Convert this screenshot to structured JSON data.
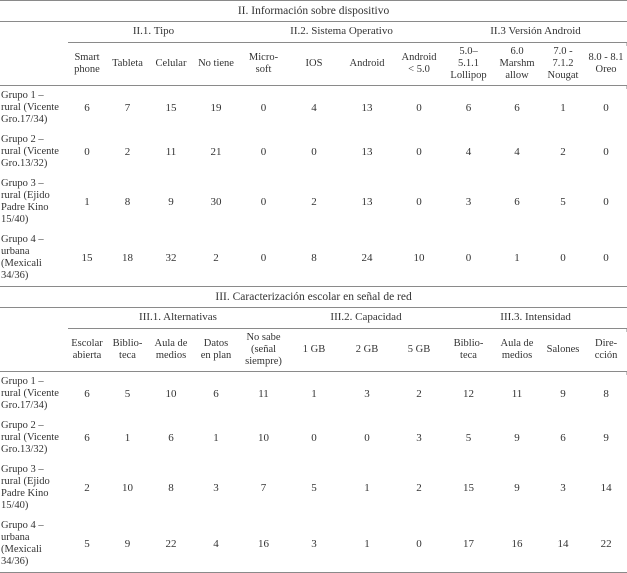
{
  "tables": [
    {
      "title": "II. Información sobre dispositivo",
      "groups": [
        {
          "label": "II.1. Tipo",
          "span": 4
        },
        {
          "label": "II.2. Sistema Operativo",
          "span": 4
        },
        {
          "label": "II.3 Versión Android",
          "span": 4
        }
      ],
      "columns": [
        "Smart\nphone",
        "Tableta",
        "Celular",
        "No tiene",
        "Micro-\nsoft",
        "IOS",
        "Android",
        "Android\n< 5.0",
        "5.0–\n5.1.1\nLollipop",
        "6.0\nMarshm\nallow",
        "7.0 -\n7.1.2\nNougat",
        "8.0 - 8.1\nOreo"
      ],
      "rows": [
        {
          "label": "Grupo 1 –\nrural (Vicente\nGro.17/34)",
          "values": [
            6,
            7,
            15,
            19,
            0,
            4,
            13,
            0,
            6,
            6,
            1,
            0
          ]
        },
        {
          "label": "Grupo 2 –\nrural (Vicente\nGro.13/32)",
          "values": [
            0,
            2,
            11,
            21,
            0,
            0,
            13,
            0,
            4,
            4,
            2,
            0
          ]
        },
        {
          "label": "Grupo 3 –\nrural (Ejido\nPadre Kino\n15/40)",
          "values": [
            1,
            8,
            9,
            30,
            0,
            2,
            13,
            0,
            3,
            6,
            5,
            0
          ]
        },
        {
          "label": "Grupo 4 –\nurbana\n(Mexicali\n34/36)",
          "values": [
            15,
            18,
            32,
            2,
            0,
            8,
            24,
            10,
            0,
            1,
            0,
            0
          ]
        }
      ]
    },
    {
      "title": "III. Caracterización escolar en señal de red",
      "groups": [
        {
          "label": "III.1. Alternativas",
          "span": 5
        },
        {
          "label": "III.2. Capacidad",
          "span": 3
        },
        {
          "label": "III.3. Intensidad",
          "span": 4
        }
      ],
      "columns": [
        "Escolar\nabierta",
        "Biblio-\nteca",
        "Aula de\nmedios",
        "Datos\nen plan",
        "No sabe\n(señal\nsiempre)",
        "1 GB",
        "2 GB",
        "5 GB",
        "Biblio-\nteca",
        "Aula de\nmedios",
        "Salones",
        "Dire-\ncción"
      ],
      "rows": [
        {
          "label": "Grupo 1 –\nrural (Vicente\nGro.17/34)",
          "values": [
            6,
            5,
            10,
            6,
            11,
            1,
            3,
            2,
            12,
            11,
            9,
            8
          ]
        },
        {
          "label": "Grupo 2 –\nrural (Vicente\nGro.13/32)",
          "values": [
            6,
            1,
            6,
            1,
            10,
            0,
            0,
            3,
            5,
            9,
            6,
            9
          ]
        },
        {
          "label": "Grupo 3 –\nrural (Ejido\nPadre Kino\n15/40)",
          "values": [
            2,
            10,
            8,
            3,
            7,
            5,
            1,
            2,
            15,
            9,
            3,
            14
          ]
        },
        {
          "label": "Grupo 4 –\nurbana\n(Mexicali\n34/36)",
          "values": [
            5,
            9,
            22,
            4,
            16,
            3,
            1,
            0,
            17,
            16,
            14,
            22
          ]
        }
      ]
    }
  ]
}
